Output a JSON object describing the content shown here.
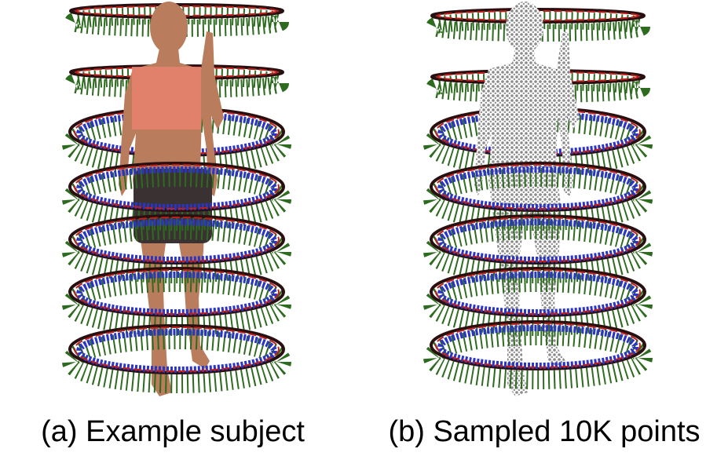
{
  "captions": {
    "a": "(a) Example subject",
    "b": "(b) Sampled 10K points"
  }
}
